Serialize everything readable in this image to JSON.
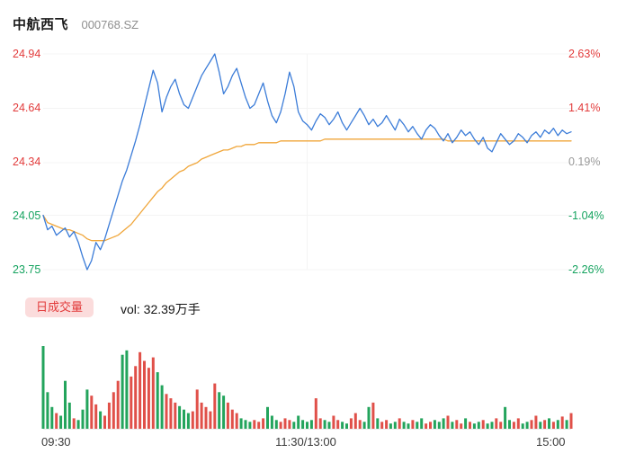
{
  "header": {
    "title": "中航西飞",
    "code": "000768.SZ"
  },
  "price_axis_left": [
    "24.94",
    "24.64",
    "24.34",
    "24.05",
    "23.75"
  ],
  "price_axis_right": [
    "2.63%",
    "1.41%",
    "0.19%",
    "-1.04%",
    "-2.26%"
  ],
  "axis_label_colors": {
    "left": [
      "red",
      "red",
      "red",
      "green",
      "green"
    ],
    "right": [
      "red",
      "red",
      "gray",
      "green",
      "green"
    ]
  },
  "volume_header": {
    "badge": "日成交量",
    "total": "vol: 32.39万手"
  },
  "time_axis": {
    "open": "09:30",
    "midday": "11:30/13:00",
    "close": "15:00"
  },
  "colors": {
    "price_line": "#3b7cd8",
    "avg_line": "#f0a63a",
    "up_red": "#e05049",
    "down_green": "#23a45c",
    "label_red": "#e23b3b",
    "label_green": "#15a35f",
    "badge_bg": "#fbdcdc"
  },
  "chart_data": [
    {
      "type": "line",
      "title": "中航西飞 000768.SZ 分时走势",
      "sessions": [
        "09:30-11:30",
        "13:00-15:00"
      ],
      "x_ticks": [
        "09:30",
        "11:30/13:00",
        "15:00"
      ],
      "y_left_ticks": [
        24.94,
        24.64,
        24.34,
        24.05,
        23.75
      ],
      "y_right_ticks": [
        "2.63%",
        "1.41%",
        "0.19%",
        "-1.04%",
        "-2.26%"
      ],
      "prev_close": 24.3,
      "ylim": [
        23.75,
        24.94
      ],
      "grid": true,
      "series": [
        {
          "name": "price",
          "color": "#3b7cd8",
          "values": [
            24.05,
            23.97,
            23.99,
            23.94,
            23.96,
            23.98,
            23.93,
            23.96,
            23.9,
            23.82,
            23.75,
            23.8,
            23.9,
            23.86,
            23.92,
            24.0,
            24.08,
            24.16,
            24.24,
            24.3,
            24.38,
            24.46,
            24.55,
            24.65,
            24.75,
            24.85,
            24.78,
            24.62,
            24.7,
            24.76,
            24.8,
            24.72,
            24.66,
            24.64,
            24.7,
            24.76,
            24.82,
            24.86,
            24.9,
            24.94,
            24.84,
            24.72,
            24.76,
            24.82,
            24.86,
            24.78,
            24.7,
            24.64,
            24.66,
            24.72,
            24.78,
            24.68,
            24.6,
            24.56,
            24.62,
            24.72,
            24.84,
            24.76,
            24.62,
            24.57,
            24.55,
            24.52,
            24.57,
            24.61,
            24.59,
            24.55,
            24.58,
            24.62,
            24.56,
            24.52,
            24.56,
            24.6,
            24.64,
            24.6,
            24.55,
            24.58,
            24.54,
            24.56,
            24.6,
            24.56,
            24.52,
            24.58,
            24.55,
            24.51,
            24.54,
            24.5,
            24.47,
            24.52,
            24.55,
            24.53,
            24.49,
            24.46,
            24.5,
            24.45,
            24.48,
            24.52,
            24.49,
            24.51,
            24.47,
            24.44,
            24.48,
            24.42,
            24.4,
            24.45,
            24.5,
            24.47,
            24.44,
            24.46,
            24.5,
            24.48,
            24.45,
            24.49,
            24.51,
            24.48,
            24.52,
            24.5,
            24.53,
            24.49,
            24.52,
            24.5,
            24.51
          ]
        },
        {
          "name": "avg",
          "color": "#f0a63a",
          "values": [
            24.05,
            24.01,
            24.0,
            23.99,
            23.98,
            23.97,
            23.97,
            23.96,
            23.95,
            23.94,
            23.92,
            23.91,
            23.91,
            23.91,
            23.91,
            23.92,
            23.93,
            23.94,
            23.96,
            23.98,
            24.0,
            24.03,
            24.06,
            24.09,
            24.12,
            24.15,
            24.18,
            24.2,
            24.23,
            24.25,
            24.27,
            24.29,
            24.3,
            24.32,
            24.33,
            24.34,
            24.36,
            24.37,
            24.38,
            24.39,
            24.4,
            24.41,
            24.41,
            24.42,
            24.43,
            24.43,
            24.44,
            24.44,
            24.44,
            24.45,
            24.45,
            24.45,
            24.45,
            24.45,
            24.46,
            24.46,
            24.46,
            24.46,
            24.46,
            24.46,
            24.46,
            24.46,
            24.46,
            24.46,
            24.47,
            24.47,
            24.47,
            24.47,
            24.47,
            24.47,
            24.47,
            24.47,
            24.47,
            24.47,
            24.47,
            24.47,
            24.47,
            24.47,
            24.47,
            24.47,
            24.47,
            24.47,
            24.47,
            24.47,
            24.47,
            24.47,
            24.47,
            24.47,
            24.47,
            24.47,
            24.47,
            24.47,
            24.46,
            24.46,
            24.46,
            24.46,
            24.46,
            24.46,
            24.46,
            24.46,
            24.46,
            24.46,
            24.46,
            24.46,
            24.46,
            24.46,
            24.46,
            24.46,
            24.46,
            24.46,
            24.46,
            24.46,
            24.46,
            24.46,
            24.46,
            24.46,
            24.46,
            24.46,
            24.46,
            24.46,
            24.46
          ]
        }
      ]
    },
    {
      "type": "bar",
      "title": "日成交量",
      "total_label": "vol: 32.39万手",
      "unit": "relative volume (max=100), red=up tick, green=down tick",
      "up_color": "#e05049",
      "down_color": "#23a45c",
      "values": [
        95,
        42,
        25,
        18,
        15,
        55,
        30,
        12,
        10,
        22,
        45,
        38,
        28,
        20,
        15,
        30,
        42,
        55,
        85,
        90,
        60,
        72,
        88,
        78,
        70,
        82,
        65,
        50,
        40,
        35,
        30,
        26,
        22,
        18,
        20,
        45,
        30,
        25,
        20,
        52,
        42,
        38,
        30,
        22,
        18,
        12,
        10,
        8,
        10,
        8,
        12,
        25,
        15,
        10,
        8,
        12,
        10,
        8,
        15,
        10,
        8,
        10,
        35,
        12,
        10,
        8,
        15,
        10,
        8,
        6,
        12,
        18,
        10,
        8,
        25,
        30,
        12,
        8,
        10,
        6,
        8,
        12,
        8,
        6,
        10,
        8,
        12,
        6,
        8,
        10,
        8,
        12,
        15,
        8,
        10,
        6,
        12,
        8,
        6,
        8,
        10,
        6,
        8,
        12,
        8,
        25,
        10,
        8,
        12,
        6,
        8,
        10,
        15,
        8,
        10,
        12,
        8,
        10,
        14,
        10,
        18
      ],
      "colors": [
        "g",
        "g",
        "g",
        "r",
        "g",
        "g",
        "g",
        "r",
        "g",
        "g",
        "g",
        "r",
        "r",
        "g",
        "r",
        "r",
        "r",
        "r",
        "g",
        "g",
        "r",
        "r",
        "r",
        "r",
        "r",
        "r",
        "g",
        "g",
        "r",
        "r",
        "r",
        "g",
        "g",
        "g",
        "r",
        "r",
        "r",
        "r",
        "r",
        "r",
        "g",
        "g",
        "r",
        "r",
        "r",
        "g",
        "g",
        "g",
        "r",
        "r",
        "r",
        "g",
        "g",
        "g",
        "r",
        "r",
        "r",
        "g",
        "g",
        "g",
        "g",
        "g",
        "r",
        "r",
        "g",
        "g",
        "r",
        "r",
        "g",
        "g",
        "r",
        "r",
        "r",
        "g",
        "g",
        "r",
        "g",
        "r",
        "r",
        "g",
        "g",
        "r",
        "g",
        "g",
        "r",
        "g",
        "g",
        "r",
        "r",
        "g",
        "g",
        "g",
        "r",
        "g",
        "r",
        "r",
        "g",
        "r",
        "g",
        "g",
        "r",
        "g",
        "g",
        "r",
        "r",
        "g",
        "g",
        "r",
        "r",
        "g",
        "g",
        "r",
        "r",
        "g",
        "r",
        "g",
        "r",
        "g",
        "r",
        "g",
        "r"
      ]
    }
  ]
}
